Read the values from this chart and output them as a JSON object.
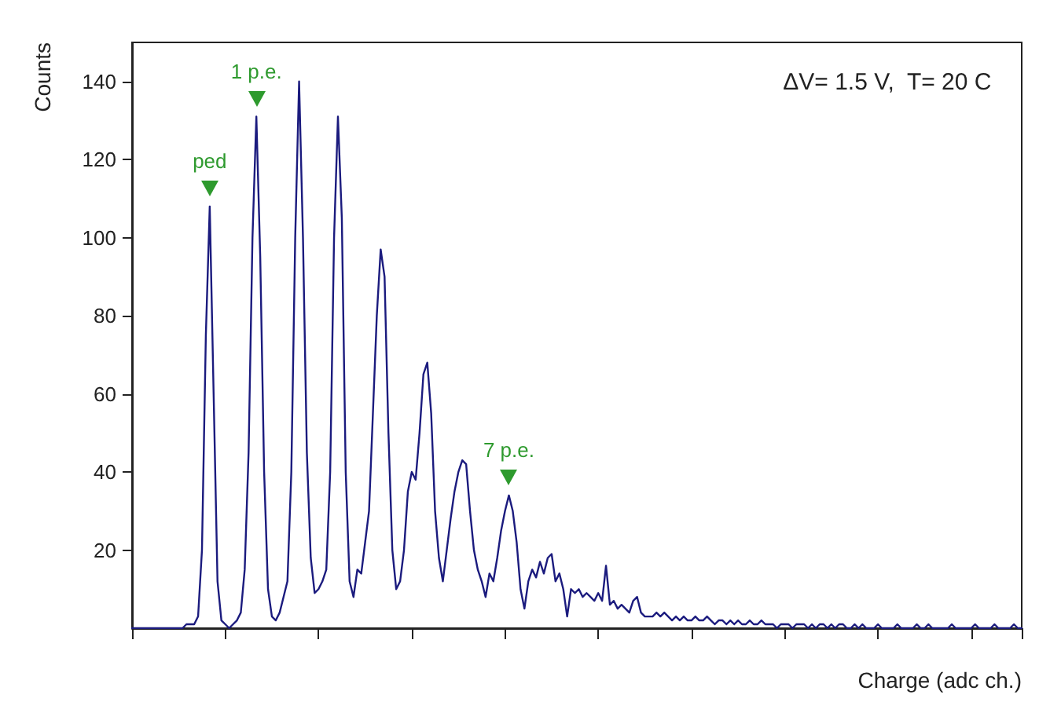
{
  "chart_data": {
    "type": "line",
    "xlabel": "Charge (adc ch.)",
    "ylabel": "Counts",
    "annotations": [
      "ΔV= 1.5 V,  T= 20 C",
      {
        "text": "ped",
        "y": 108
      },
      {
        "text": "1 p.e.",
        "y": 131
      },
      {
        "text": "7 p.e.",
        "y": 34
      }
    ],
    "categories": [
      null,
      null,
      null,
      null,
      null,
      null,
      null,
      null,
      null,
      null,
      null,
      null,
      null,
      null,
      null,
      null,
      null,
      null,
      null,
      null,
      null,
      null,
      null,
      null,
      null,
      null,
      null,
      null,
      null,
      null,
      null,
      null,
      null,
      null,
      null,
      null,
      null,
      null,
      null,
      null,
      null,
      null,
      null,
      null,
      null,
      null,
      null,
      null,
      null,
      null,
      null,
      null,
      null,
      null,
      null,
      null,
      null,
      null,
      null,
      null,
      null,
      null,
      null,
      null,
      null,
      null,
      null,
      null,
      null,
      null,
      null,
      null,
      null,
      null,
      null,
      null,
      null,
      null,
      null,
      null,
      null,
      null,
      null,
      null,
      null,
      null,
      null,
      null,
      null,
      null,
      null,
      null,
      null,
      null,
      null,
      null,
      null,
      null,
      null,
      null,
      null,
      null,
      null,
      null,
      null,
      null,
      null,
      null,
      null,
      null,
      null,
      null,
      null,
      null,
      null,
      null,
      null,
      null,
      null,
      null,
      null,
      null,
      null,
      null,
      null,
      null,
      null,
      null,
      null,
      null,
      null,
      null,
      null,
      null,
      null,
      null,
      null,
      null,
      null,
      null,
      null,
      null,
      null,
      null,
      null,
      null,
      null,
      null,
      null,
      null,
      null,
      null,
      null,
      null,
      null,
      null,
      null,
      null,
      null,
      null,
      null,
      null,
      null,
      null,
      null,
      null,
      null,
      null,
      null,
      null,
      null,
      null,
      null,
      null,
      null,
      null,
      null,
      null,
      null,
      null,
      null,
      null,
      null,
      null,
      null,
      null,
      null,
      null,
      null,
      null,
      null,
      null,
      null,
      null,
      null,
      null,
      null,
      null,
      null,
      null,
      null,
      null,
      null,
      null,
      null,
      null,
      null,
      null,
      null,
      null,
      null,
      null,
      null,
      null,
      null,
      null,
      null,
      null,
      null,
      null,
      null,
      null,
      null,
      null,
      null,
      null,
      null,
      null,
      null,
      null
    ],
    "series": [
      {
        "color": "#1b1b7e",
        "values": [
          0,
          0,
          0,
          0,
          0,
          0,
          0,
          0,
          0,
          0,
          0,
          0,
          0,
          0,
          1,
          1,
          1,
          3,
          20,
          75,
          108,
          60,
          12,
          2,
          1,
          0,
          1,
          2,
          4,
          15,
          45,
          100,
          131,
          95,
          40,
          10,
          3,
          2,
          4,
          8,
          12,
          40,
          100,
          140,
          100,
          45,
          18,
          9,
          10,
          12,
          15,
          40,
          100,
          131,
          105,
          40,
          12,
          8,
          15,
          14,
          22,
          30,
          55,
          80,
          97,
          90,
          50,
          20,
          10,
          12,
          20,
          35,
          40,
          38,
          50,
          65,
          68,
          55,
          30,
          18,
          12,
          20,
          28,
          35,
          40,
          43,
          42,
          30,
          20,
          15,
          12,
          8,
          14,
          12,
          18,
          25,
          30,
          34,
          30,
          22,
          10,
          5,
          12,
          15,
          13,
          17,
          14,
          18,
          19,
          12,
          14,
          10,
          3,
          10,
          9,
          10,
          8,
          9,
          8,
          7,
          9,
          7,
          16,
          6,
          7,
          5,
          6,
          5,
          4,
          7,
          8,
          4,
          3,
          3,
          3,
          4,
          3,
          4,
          3,
          2,
          3,
          2,
          3,
          2,
          2,
          3,
          2,
          2,
          3,
          2,
          1,
          2,
          2,
          1,
          2,
          1,
          2,
          1,
          1,
          2,
          1,
          1,
          2,
          1,
          1,
          1,
          0,
          1,
          1,
          1,
          0,
          1,
          1,
          1,
          0,
          1,
          0,
          1,
          1,
          0,
          1,
          0,
          1,
          1,
          0,
          0,
          1,
          0,
          1,
          0,
          0,
          0,
          1,
          0,
          0,
          0,
          0,
          1,
          0,
          0,
          0,
          0,
          1,
          0,
          0,
          1,
          0,
          0,
          0,
          0,
          0,
          1,
          0,
          0,
          0,
          0,
          0,
          1,
          0,
          0,
          0,
          0,
          1,
          0,
          0,
          0,
          0,
          1,
          0,
          0
        ]
      }
    ],
    "ylim": [
      0,
      150
    ],
    "yticks": [
      20,
      40,
      60,
      80,
      100,
      120,
      140
    ],
    "tick_labels": "y",
    "grid": false,
    "line_style": "solid"
  }
}
